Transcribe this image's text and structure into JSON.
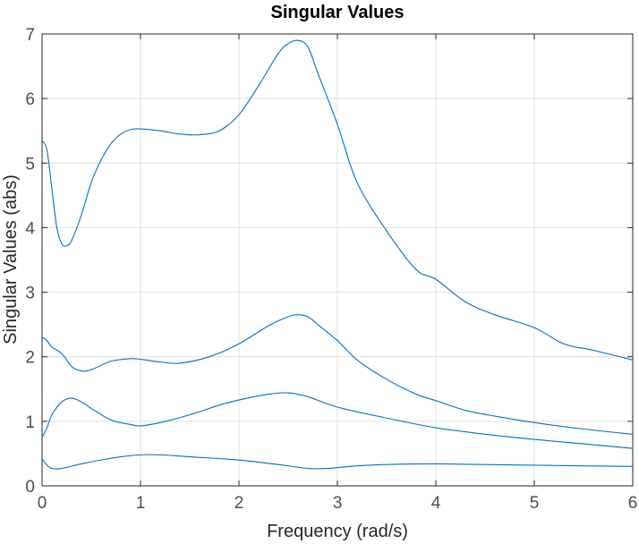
{
  "chart_data": {
    "type": "line",
    "title": "Singular Values",
    "xlabel": "Frequency (rad/s)",
    "ylabel": "Singular Values (abs)",
    "xlim": [
      0,
      6
    ],
    "ylim": [
      0,
      7
    ],
    "xticks": [
      "0",
      "1",
      "2",
      "3",
      "4",
      "5",
      "6"
    ],
    "yticks": [
      "0",
      "1",
      "2",
      "3",
      "4",
      "5",
      "6",
      "7"
    ],
    "grid": true,
    "line_color": "#0072bd",
    "series": [
      {
        "x": [
          0,
          0.05,
          0.1,
          0.15,
          0.2,
          0.25,
          0.3,
          0.4,
          0.5,
          0.6,
          0.7,
          0.8,
          0.9,
          1.0,
          1.2,
          1.4,
          1.6,
          1.8,
          2.0,
          2.2,
          2.4,
          2.5,
          2.6,
          2.7,
          2.8,
          3.0,
          3.2,
          3.5,
          3.8,
          4.0,
          4.3,
          4.6,
          5.0,
          5.3,
          5.6,
          6.0
        ],
        "values": [
          5.35,
          5.2,
          4.6,
          4.0,
          3.75,
          3.72,
          3.8,
          4.2,
          4.7,
          5.05,
          5.3,
          5.45,
          5.52,
          5.53,
          5.5,
          5.45,
          5.44,
          5.5,
          5.75,
          6.2,
          6.7,
          6.85,
          6.9,
          6.8,
          6.4,
          5.6,
          4.7,
          3.95,
          3.35,
          3.2,
          2.85,
          2.65,
          2.45,
          2.2,
          2.1,
          1.95
        ]
      },
      {
        "x": [
          0,
          0.05,
          0.1,
          0.2,
          0.3,
          0.4,
          0.5,
          0.7,
          0.9,
          1.0,
          1.2,
          1.4,
          1.7,
          2.0,
          2.3,
          2.5,
          2.6,
          2.7,
          2.8,
          3.0,
          3.2,
          3.5,
          3.8,
          4.0,
          4.3,
          4.6,
          5.0,
          5.5,
          6.0
        ],
        "values": [
          2.3,
          2.25,
          2.15,
          2.05,
          1.85,
          1.78,
          1.8,
          1.93,
          1.97,
          1.96,
          1.92,
          1.9,
          2.0,
          2.2,
          2.48,
          2.62,
          2.65,
          2.62,
          2.5,
          2.25,
          1.95,
          1.65,
          1.42,
          1.32,
          1.17,
          1.08,
          0.98,
          0.88,
          0.8
        ]
      },
      {
        "x": [
          0,
          0.05,
          0.1,
          0.2,
          0.3,
          0.4,
          0.5,
          0.7,
          0.9,
          1.0,
          1.2,
          1.5,
          1.8,
          2.0,
          2.3,
          2.5,
          2.7,
          3.0,
          3.5,
          4.0,
          4.5,
          5.0,
          5.5,
          6.0
        ],
        "values": [
          0.75,
          0.9,
          1.1,
          1.3,
          1.36,
          1.3,
          1.2,
          1.02,
          0.95,
          0.93,
          0.98,
          1.1,
          1.25,
          1.33,
          1.42,
          1.44,
          1.38,
          1.22,
          1.05,
          0.9,
          0.8,
          0.72,
          0.65,
          0.58
        ]
      },
      {
        "x": [
          0,
          0.05,
          0.1,
          0.2,
          0.4,
          0.6,
          0.8,
          1.0,
          1.2,
          1.5,
          2.0,
          2.4,
          2.7,
          2.9,
          3.2,
          3.5,
          4.0,
          4.5,
          5.0,
          5.5,
          6.0
        ],
        "values": [
          0.42,
          0.32,
          0.27,
          0.27,
          0.34,
          0.4,
          0.45,
          0.48,
          0.48,
          0.45,
          0.4,
          0.33,
          0.27,
          0.27,
          0.31,
          0.33,
          0.34,
          0.33,
          0.32,
          0.31,
          0.3
        ]
      }
    ]
  }
}
